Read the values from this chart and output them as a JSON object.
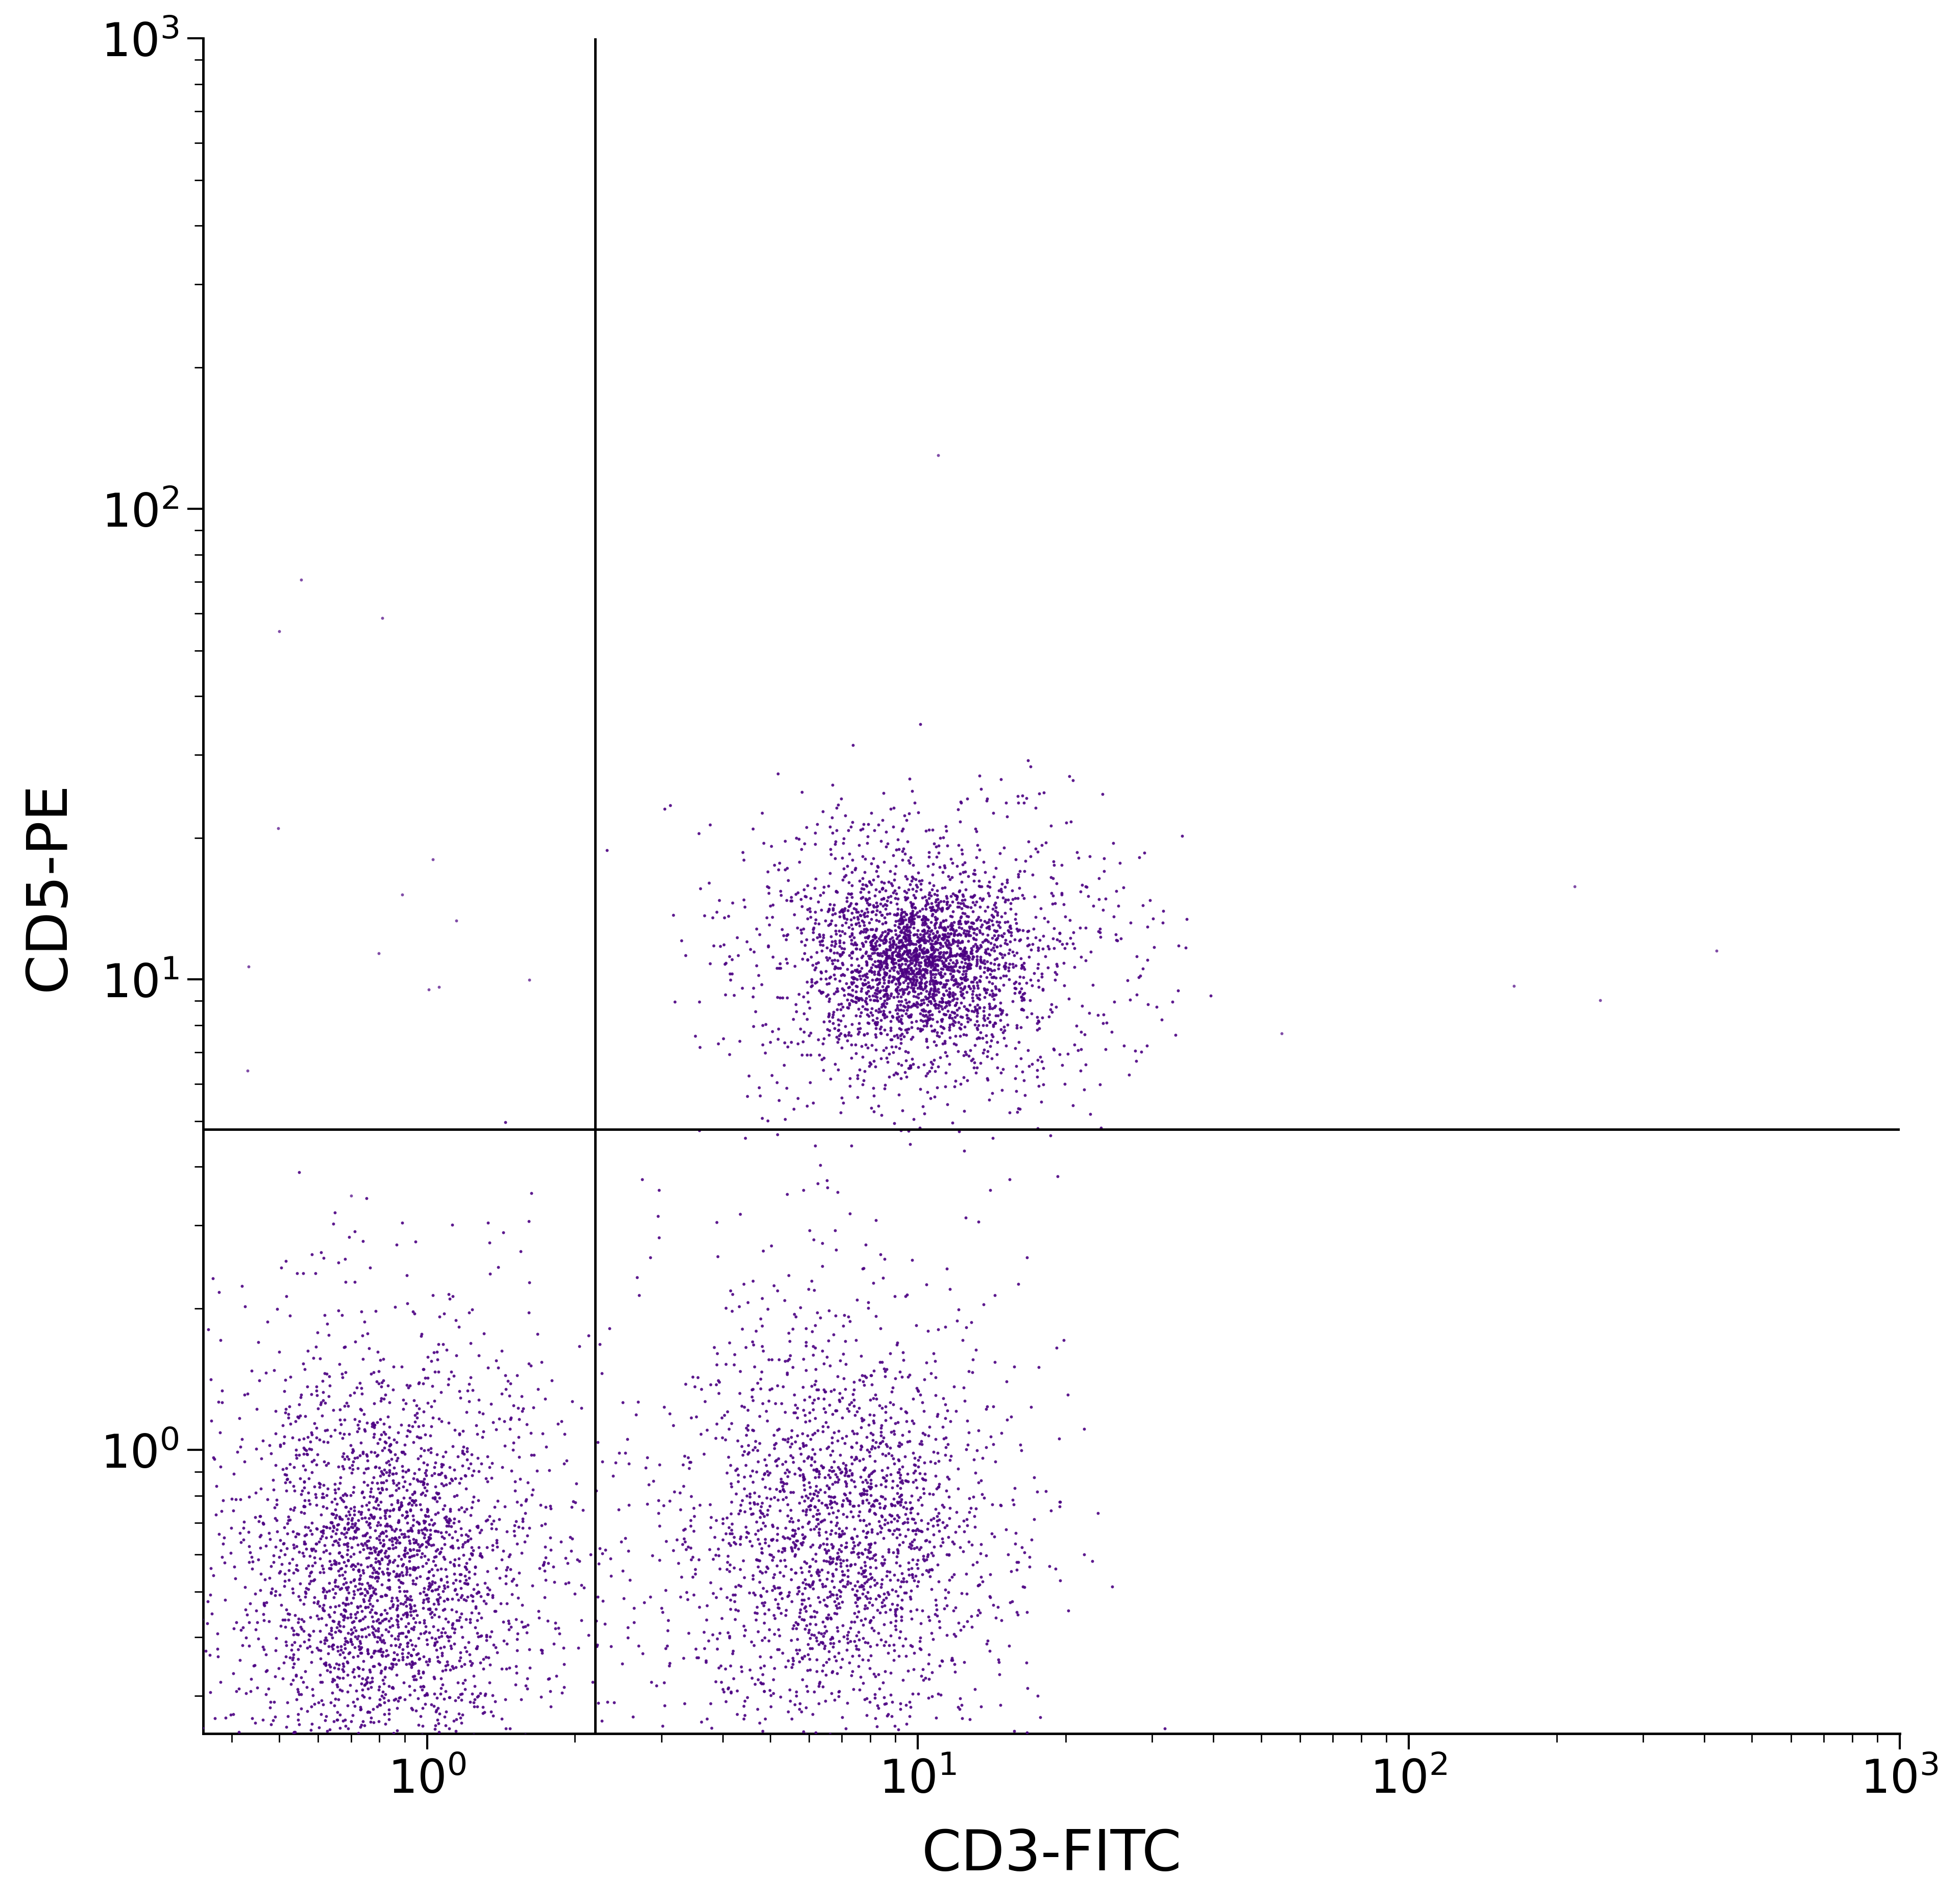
{
  "xlabel": "CD3-FITC",
  "ylabel": "CD5-PE",
  "xlim_log": [
    0.35,
    1000
  ],
  "ylim_log": [
    0.25,
    1000
  ],
  "dot_color": "#4B0082",
  "dot_color_light": "#8B008B",
  "background_color": "#ffffff",
  "xlabel_fontsize": 80,
  "ylabel_fontsize": 80,
  "tick_fontsize": 65,
  "linewidth_gate": 3.5,
  "linewidth_spine": 3.5,
  "gate_x": 2.2,
  "gate_y": 4.8,
  "n_cluster_ur": 3000,
  "n_cluster_ll": 2800,
  "n_cluster_lr": 2200,
  "dot_size": 18,
  "dot_alpha": 0.9
}
